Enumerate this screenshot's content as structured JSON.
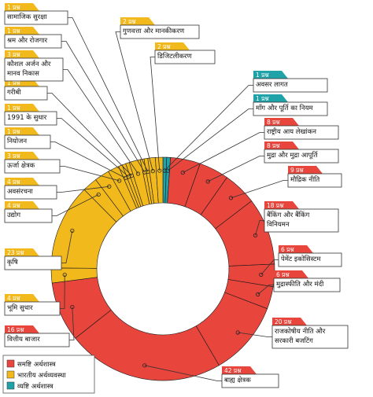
{
  "chart_data": {
    "type": "donut",
    "title": "",
    "unit": "प्रश्न",
    "legend": [
      {
        "key": "macro",
        "label": "समष्टि अर्थशास्त्र",
        "color": "#e8453c"
      },
      {
        "key": "indian",
        "label": "भारतीय अर्थव्यवस्था",
        "color": "#f2b91c"
      },
      {
        "key": "micro",
        "label": "व्यष्टि अर्थशास्त्र",
        "color": "#1fa3a8"
      }
    ],
    "slices": [
      {
        "label": "अवसर लागत",
        "value": 1,
        "category": "micro",
        "count_label": "1 प्रश्न"
      },
      {
        "label": "माँग और पूर्ति का नियम",
        "value": 1,
        "category": "micro",
        "count_label": "1 प्रश्न"
      },
      {
        "label": "राष्ट्रीय आय लेखांकन",
        "value": 8,
        "category": "macro",
        "count_label": "8 प्रश्न"
      },
      {
        "label": "मुद्रा और मुद्रा आपूर्ति",
        "value": 8,
        "category": "macro",
        "count_label": "8 प्रश्न"
      },
      {
        "label": "मौद्रिक नीति",
        "value": 9,
        "category": "macro",
        "count_label": "9 प्रश्न"
      },
      {
        "label": "बैंकिंग और बैंकिंग विनियमन",
        "value": 18,
        "category": "macro",
        "count_label": "18 प्रश्न"
      },
      {
        "label": "पेमेंट इकोसिस्टम",
        "value": 6,
        "category": "macro",
        "count_label": "6 प्रश्न"
      },
      {
        "label": "मुद्रास्फीति और मंदी",
        "value": 6,
        "category": "macro",
        "count_label": "6 प्रश्न"
      },
      {
        "label": "राजकोषीय नीति और सरकारी बजटिंग",
        "value": 20,
        "category": "macro",
        "count_label": "20 प्रश्न"
      },
      {
        "label": "बाह्य क्षेत्रक",
        "value": 42,
        "category": "macro",
        "count_label": "42 प्रश्न"
      },
      {
        "label": "वित्तीय बाजार",
        "value": 16,
        "category": "macro",
        "count_label": "16 प्रश्न"
      },
      {
        "label": "भूमि सुधार",
        "value": 4,
        "category": "indian",
        "count_label": "4 प्रश्न"
      },
      {
        "label": "कृषि",
        "value": 23,
        "category": "indian",
        "count_label": "23 प्रश्न"
      },
      {
        "label": "उद्योग",
        "value": 4,
        "category": "indian",
        "count_label": "4 प्रश्न"
      },
      {
        "label": "अवसंरचना",
        "value": 4,
        "category": "indian",
        "count_label": "4 प्रश्न"
      },
      {
        "label": "ऊर्जा क्षेत्रक",
        "value": 3,
        "category": "indian",
        "count_label": "3 प्रश्न"
      },
      {
        "label": "नियोजन",
        "value": 1,
        "category": "indian",
        "count_label": "1 प्रश्न"
      },
      {
        "label": "1991 के सुधार",
        "value": 1,
        "category": "indian",
        "count_label": "1 प्रश्न"
      },
      {
        "label": "गरीबी",
        "value": 1,
        "category": "indian",
        "count_label": "1 प्रश्न"
      },
      {
        "label": "कौशल अर्जन और मानव निकास",
        "value": 3,
        "category": "indian",
        "count_label": "3 प्रश्न"
      },
      {
        "label": "श्रम और रोजगार",
        "value": 1,
        "category": "indian",
        "count_label": "1 प्रश्न"
      },
      {
        "label": "सामाजिक सुरक्षा",
        "value": 1,
        "category": "indian",
        "count_label": "1 प्रश्न"
      },
      {
        "label": "गुणवत्ता और मानकीकरण",
        "value": 2,
        "category": "indian",
        "count_label": "2 प्रश्न"
      },
      {
        "label": "डिजिटलीकरण",
        "value": 2,
        "category": "indian",
        "count_label": "2 प्रश्न"
      }
    ]
  }
}
